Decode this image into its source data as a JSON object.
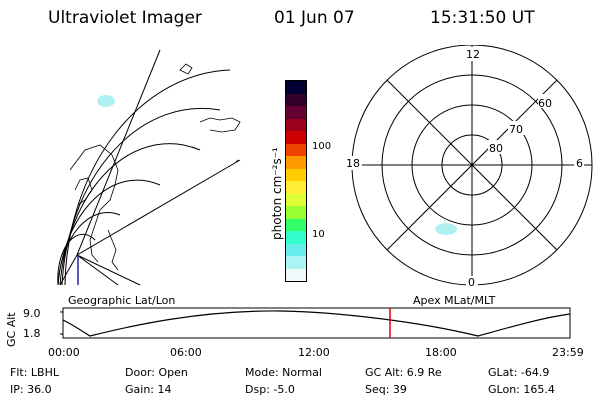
{
  "header": {
    "title": "Ultraviolet Imager",
    "date": "01 Jun 07",
    "time": "15:31:50 UT"
  },
  "panels": {
    "left_label": "Geographic Lat/Lon",
    "right_label": "Apex MLat/MLT"
  },
  "colorbar": {
    "label": "photon cm⁻²s⁻¹",
    "ticks": [
      "100",
      "10"
    ],
    "colors": [
      "#000033",
      "#33002a",
      "#660033",
      "#99001a",
      "#cc0000",
      "#ee4400",
      "#ff9900",
      "#ffcc00",
      "#ffee33",
      "#ddff33",
      "#99ff33",
      "#33ff66",
      "#33ffcc",
      "#66eeee",
      "#aaf4f4",
      "#eefafa"
    ]
  },
  "polar": {
    "mlt_labels": [
      "12",
      "18",
      "6",
      "0"
    ],
    "lat_labels": [
      "60",
      "70",
      "80"
    ]
  },
  "altitude_plot": {
    "ylabel": "GC Alt",
    "y_ticks": [
      "9.0",
      "1.8"
    ],
    "x_ticks": [
      "00:00",
      "06:00",
      "12:00",
      "18:00",
      "23:59"
    ],
    "marker_color": "#dd0000"
  },
  "info": {
    "flt": "Flt: LBHL",
    "door": "Door: Open",
    "mode": "Mode: Normal",
    "gc_alt": "GC Alt: 6.9 Re",
    "glat": "GLat: -64.9",
    "ip": "IP: 36.0",
    "gain": "Gain: 14",
    "dsp": "Dsp:   -5.0",
    "seq": "Seq: 39",
    "glon": "GLon: 165.4"
  }
}
